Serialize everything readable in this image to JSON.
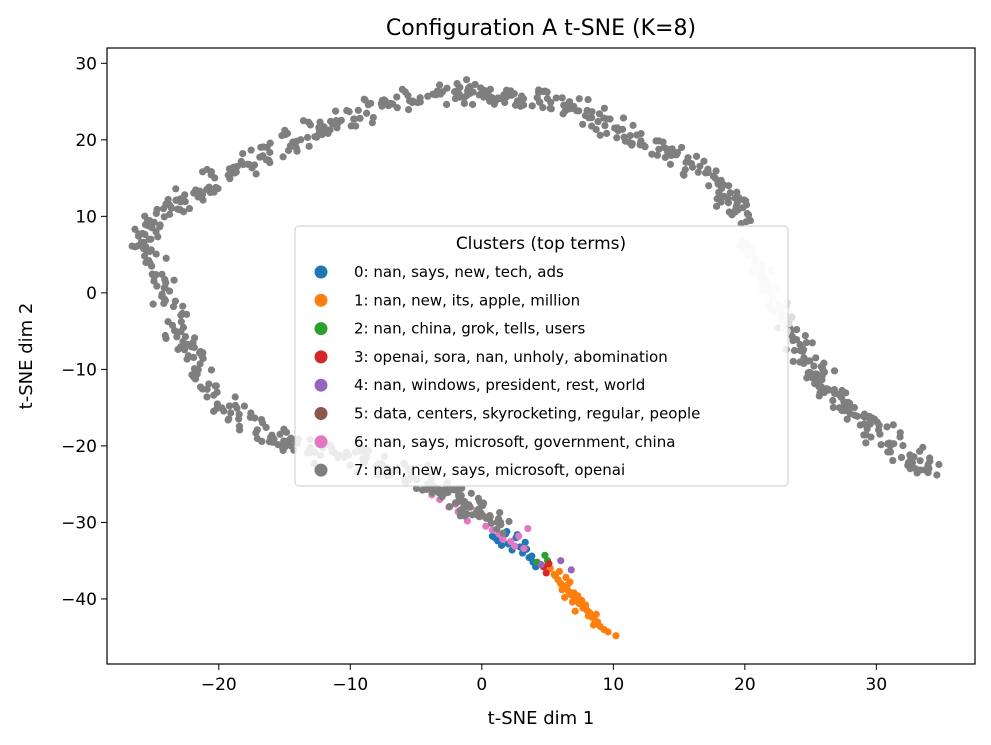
{
  "chart_data": {
    "type": "scatter",
    "title": "Configuration A t-SNE (K=8)",
    "xlabel": "t-SNE dim 1",
    "ylabel": "t-SNE dim 2",
    "xlim": [
      -28.5,
      37.5
    ],
    "ylim": [
      -48.5,
      32
    ],
    "xticks": [
      -20,
      -10,
      0,
      10,
      20,
      30
    ],
    "yticks": [
      -40,
      -30,
      -20,
      -10,
      0,
      10,
      20,
      30
    ],
    "grid": false,
    "legend": {
      "title": "Clusters (top terms)",
      "placement": "center",
      "entries": [
        {
          "label": "0: nan, says, new, tech, ads",
          "color": "#1f77b4"
        },
        {
          "label": "1: nan, new, its, apple, million",
          "color": "#ff7f0e"
        },
        {
          "label": "2: nan, china, grok, tells, users",
          "color": "#2ca02c"
        },
        {
          "label": "3: openai, sora, nan, unholy, abomination",
          "color": "#d62728"
        },
        {
          "label": "4: nan, windows, president, rest, world",
          "color": "#9467bd"
        },
        {
          "label": "5: data, centers, skyrocketing, regular, people",
          "color": "#8c564b"
        },
        {
          "label": "6: nan, says, microsoft, government, china",
          "color": "#e377c2"
        },
        {
          "label": "7: nan, new, says, microsoft, openai",
          "color": "#7f7f7f"
        }
      ]
    },
    "series": [
      {
        "name": "0: nan, says, new, tech, ads",
        "color": "#1f77b4",
        "x": [
          0.8,
          1.2,
          1.5,
          1.8,
          2.0,
          2.3,
          2.6,
          2.9,
          3.1,
          3.4,
          3.6,
          3.9,
          4.1,
          1.0,
          1.9,
          2.7,
          3.3,
          3.8
        ],
        "y": [
          -31.8,
          -32.4,
          -33.0,
          -31.5,
          -32.8,
          -33.6,
          -32.0,
          -33.2,
          -34.0,
          -33.5,
          -34.6,
          -35.2,
          -35.8,
          -32.0,
          -31.2,
          -31.6,
          -32.6,
          -34.4
        ]
      },
      {
        "name": "1: nan, new, its, apple, million",
        "color": "#ff7f0e",
        "x": [
          5.2,
          5.5,
          5.8,
          6.0,
          6.2,
          6.4,
          6.6,
          6.8,
          7.0,
          7.2,
          7.4,
          7.6,
          7.8,
          8.0,
          8.2,
          8.4,
          8.6,
          8.8,
          9.0,
          9.3,
          9.6,
          10.2,
          5.6,
          6.1,
          6.5,
          6.9,
          7.3,
          7.7,
          8.1,
          8.5,
          6.3,
          7.1,
          7.9,
          8.7,
          5.9,
          6.7
        ],
        "y": [
          -36.0,
          -36.8,
          -37.5,
          -38.0,
          -38.4,
          -37.2,
          -39.0,
          -39.5,
          -39.2,
          -40.0,
          -40.6,
          -40.2,
          -41.0,
          -41.5,
          -41.8,
          -42.4,
          -42.8,
          -43.0,
          -43.6,
          -44.0,
          -44.3,
          -44.8,
          -37.0,
          -38.8,
          -38.2,
          -40.4,
          -39.6,
          -41.2,
          -42.2,
          -43.4,
          -39.8,
          -41.6,
          -40.8,
          -42.0,
          -36.4,
          -37.8
        ]
      },
      {
        "name": "2: nan, china, grok, tells, users",
        "color": "#2ca02c",
        "x": [
          4.8,
          4.2,
          5.0
        ],
        "y": [
          -34.3,
          -35.2,
          -35.0
        ]
      },
      {
        "name": "3: openai, sora, nan, unholy, abomination",
        "color": "#d62728",
        "x": [
          4.9,
          4.7,
          5.1
        ],
        "y": [
          -36.6,
          -35.8,
          -35.4
        ]
      },
      {
        "name": "4: nan, windows, president, rest, world",
        "color": "#9467bd",
        "x": [
          6.8,
          4.5,
          6.0
        ],
        "y": [
          -36.2,
          -35.5,
          -35.0
        ]
      },
      {
        "name": "5: data, centers, skyrocketing, regular, people",
        "color": "#8c564b",
        "x": [],
        "y": []
      },
      {
        "name": "6: nan, says, microsoft, government, china",
        "color": "#e377c2",
        "x": [
          -3.2,
          -2.5,
          -1.8,
          -1.1,
          -0.4,
          0.3,
          0.8,
          1.3,
          2.2,
          2.8,
          3.5,
          -3.8,
          -2.0,
          1.6,
          2.5,
          3.2
        ],
        "y": [
          -27.0,
          -28.0,
          -28.6,
          -29.8,
          -28.4,
          -30.5,
          -31.0,
          -31.5,
          -32.5,
          -31.8,
          -30.8,
          -26.4,
          -27.6,
          -32.2,
          -33.1,
          -33.4
        ]
      },
      {
        "name": "7: nan, new, says, microsoft, openai",
        "color": "#7f7f7f",
        "x": [],
        "y": []
      }
    ],
    "cluster7_shape": {
      "description_free_points": true,
      "arc": [
        [
          -26,
          6.5
        ],
        [
          -24,
          1
        ],
        [
          -23,
          -5
        ],
        [
          -22,
          -9
        ],
        [
          -20,
          -14
        ],
        [
          -17,
          -18
        ],
        [
          -14,
          -20
        ],
        [
          -10,
          -21.5
        ],
        [
          -7,
          -23
        ],
        [
          -4,
          -25
        ],
        [
          -2,
          -26.5
        ],
        [
          0,
          -28.5
        ],
        [
          1.5,
          -30.5
        ]
      ],
      "upper_arc": [
        [
          -26,
          6.5
        ],
        [
          -24.5,
          10
        ],
        [
          -22,
          12.5
        ],
        [
          -19,
          16
        ],
        [
          -16,
          18.5
        ],
        [
          -13,
          21
        ],
        [
          -10,
          23
        ],
        [
          -6,
          25
        ],
        [
          -2,
          26
        ],
        [
          0,
          26.5
        ],
        [
          2,
          25.5
        ],
        [
          5,
          25.5
        ],
        [
          8,
          23.5
        ],
        [
          11,
          21
        ],
        [
          14,
          18.5
        ],
        [
          17,
          15.5
        ],
        [
          19,
          12
        ],
        [
          20,
          10
        ]
      ],
      "right_tail": [
        [
          23.5,
          -5
        ],
        [
          25,
          -9
        ],
        [
          26,
          -12
        ],
        [
          28,
          -15
        ],
        [
          30,
          -18
        ],
        [
          32,
          -21
        ],
        [
          34.5,
          -23.5
        ]
      ]
    }
  }
}
